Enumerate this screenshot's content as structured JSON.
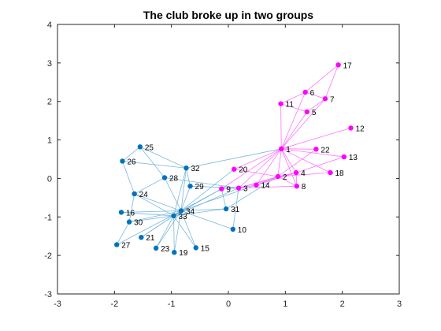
{
  "chart_data": {
    "type": "network-graph",
    "title": "The club broke up in two groups",
    "xlabel": "",
    "ylabel": "",
    "xlim": [
      -3,
      3
    ],
    "ylim": [
      -3,
      4
    ],
    "xticks": [
      -3,
      -2,
      -1,
      0,
      1,
      2,
      3
    ],
    "yticks": [
      -3,
      -2,
      -1,
      0,
      1,
      2,
      3,
      4
    ],
    "grid": false,
    "colors": {
      "group_a": "#ff00ff",
      "group_b": "#0072bd",
      "edge": "#6fb0d9",
      "edge_within_a": "#ff66ff",
      "axis": "#262626"
    },
    "nodes": [
      {
        "id": "1",
        "x": 0.93,
        "y": 0.77,
        "group": "a"
      },
      {
        "id": "2",
        "x": 0.87,
        "y": 0.05,
        "group": "a"
      },
      {
        "id": "3",
        "x": 0.18,
        "y": -0.25,
        "group": "a"
      },
      {
        "id": "4",
        "x": 1.19,
        "y": 0.15,
        "group": "a"
      },
      {
        "id": "5",
        "x": 1.38,
        "y": 1.73,
        "group": "a"
      },
      {
        "id": "6",
        "x": 1.35,
        "y": 2.24,
        "group": "a"
      },
      {
        "id": "7",
        "x": 1.7,
        "y": 2.07,
        "group": "a"
      },
      {
        "id": "8",
        "x": 1.2,
        "y": -0.2,
        "group": "a"
      },
      {
        "id": "9",
        "x": -0.12,
        "y": -0.27,
        "group": "a"
      },
      {
        "id": "10",
        "x": 0.08,
        "y": -1.32,
        "group": "b"
      },
      {
        "id": "11",
        "x": 0.92,
        "y": 1.94,
        "group": "a"
      },
      {
        "id": "12",
        "x": 2.15,
        "y": 1.31,
        "group": "a"
      },
      {
        "id": "13",
        "x": 2.03,
        "y": 0.56,
        "group": "a"
      },
      {
        "id": "14",
        "x": 0.49,
        "y": -0.17,
        "group": "a"
      },
      {
        "id": "15",
        "x": -0.57,
        "y": -1.8,
        "group": "b"
      },
      {
        "id": "16",
        "x": -1.88,
        "y": -0.88,
        "group": "b"
      },
      {
        "id": "17",
        "x": 1.93,
        "y": 2.95,
        "group": "a"
      },
      {
        "id": "18",
        "x": 1.79,
        "y": 0.15,
        "group": "a"
      },
      {
        "id": "19",
        "x": -0.95,
        "y": -1.92,
        "group": "b"
      },
      {
        "id": "20",
        "x": 0.1,
        "y": 0.24,
        "group": "a"
      },
      {
        "id": "21",
        "x": -1.53,
        "y": -1.53,
        "group": "b"
      },
      {
        "id": "22",
        "x": 1.54,
        "y": 0.76,
        "group": "a"
      },
      {
        "id": "23",
        "x": -1.27,
        "y": -1.81,
        "group": "b"
      },
      {
        "id": "24",
        "x": -1.65,
        "y": -0.4,
        "group": "b"
      },
      {
        "id": "25",
        "x": -1.55,
        "y": 0.82,
        "group": "b"
      },
      {
        "id": "26",
        "x": -1.86,
        "y": 0.45,
        "group": "b"
      },
      {
        "id": "27",
        "x": -1.96,
        "y": -1.72,
        "group": "b"
      },
      {
        "id": "28",
        "x": -1.12,
        "y": 0.02,
        "group": "b"
      },
      {
        "id": "29",
        "x": -0.67,
        "y": -0.2,
        "group": "b"
      },
      {
        "id": "30",
        "x": -1.74,
        "y": -1.13,
        "group": "b"
      },
      {
        "id": "31",
        "x": -0.04,
        "y": -0.79,
        "group": "b"
      },
      {
        "id": "32",
        "x": -0.74,
        "y": 0.27,
        "group": "b"
      },
      {
        "id": "33",
        "x": -0.96,
        "y": -0.97,
        "group": "b"
      },
      {
        "id": "34",
        "x": -0.83,
        "y": -0.84,
        "group": "b"
      }
    ],
    "edges": [
      [
        "1",
        "2"
      ],
      [
        "1",
        "3"
      ],
      [
        "1",
        "4"
      ],
      [
        "1",
        "5"
      ],
      [
        "1",
        "6"
      ],
      [
        "1",
        "7"
      ],
      [
        "1",
        "8"
      ],
      [
        "1",
        "9"
      ],
      [
        "1",
        "11"
      ],
      [
        "1",
        "12"
      ],
      [
        "1",
        "13"
      ],
      [
        "1",
        "14"
      ],
      [
        "1",
        "18"
      ],
      [
        "1",
        "20"
      ],
      [
        "1",
        "22"
      ],
      [
        "1",
        "32"
      ],
      [
        "2",
        "3"
      ],
      [
        "2",
        "4"
      ],
      [
        "2",
        "8"
      ],
      [
        "2",
        "14"
      ],
      [
        "2",
        "18"
      ],
      [
        "2",
        "20"
      ],
      [
        "2",
        "22"
      ],
      [
        "2",
        "31"
      ],
      [
        "3",
        "4"
      ],
      [
        "3",
        "8"
      ],
      [
        "3",
        "9"
      ],
      [
        "3",
        "10"
      ],
      [
        "3",
        "14"
      ],
      [
        "3",
        "28"
      ],
      [
        "3",
        "29"
      ],
      [
        "3",
        "33"
      ],
      [
        "4",
        "8"
      ],
      [
        "4",
        "13"
      ],
      [
        "4",
        "14"
      ],
      [
        "5",
        "7"
      ],
      [
        "5",
        "11"
      ],
      [
        "6",
        "7"
      ],
      [
        "6",
        "11"
      ],
      [
        "6",
        "17"
      ],
      [
        "7",
        "17"
      ],
      [
        "9",
        "31"
      ],
      [
        "9",
        "33"
      ],
      [
        "9",
        "34"
      ],
      [
        "10",
        "34"
      ],
      [
        "14",
        "34"
      ],
      [
        "15",
        "33"
      ],
      [
        "15",
        "34"
      ],
      [
        "16",
        "33"
      ],
      [
        "16",
        "34"
      ],
      [
        "19",
        "33"
      ],
      [
        "19",
        "34"
      ],
      [
        "20",
        "34"
      ],
      [
        "21",
        "33"
      ],
      [
        "21",
        "34"
      ],
      [
        "23",
        "33"
      ],
      [
        "23",
        "34"
      ],
      [
        "24",
        "26"
      ],
      [
        "24",
        "28"
      ],
      [
        "24",
        "30"
      ],
      [
        "24",
        "33"
      ],
      [
        "24",
        "34"
      ],
      [
        "25",
        "26"
      ],
      [
        "25",
        "28"
      ],
      [
        "25",
        "32"
      ],
      [
        "26",
        "32"
      ],
      [
        "27",
        "30"
      ],
      [
        "27",
        "34"
      ],
      [
        "28",
        "34"
      ],
      [
        "29",
        "32"
      ],
      [
        "29",
        "34"
      ],
      [
        "30",
        "33"
      ],
      [
        "30",
        "34"
      ],
      [
        "31",
        "33"
      ],
      [
        "31",
        "34"
      ],
      [
        "32",
        "33"
      ],
      [
        "32",
        "34"
      ],
      [
        "33",
        "34"
      ]
    ]
  }
}
